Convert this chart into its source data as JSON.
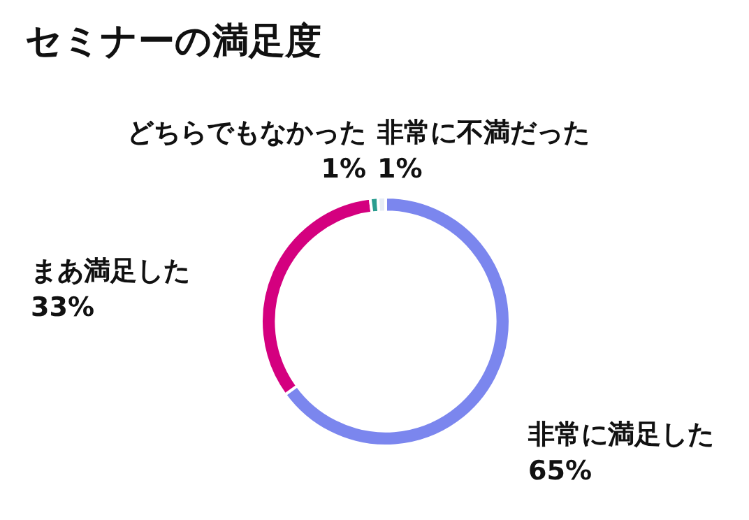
{
  "chart_data": {
    "type": "donut",
    "title": "セミナーの満足度",
    "categories": [
      "非常に満足した",
      "まあ満足した",
      "どちらでもなかった",
      "非常に不満だった"
    ],
    "values": [
      65,
      33,
      1,
      1
    ],
    "colors": [
      "#7b86ee",
      "#d4007f",
      "#2a9d8f",
      "#e6ecf5"
    ],
    "value_labels": [
      "65%",
      "33%",
      "1%",
      "1%"
    ],
    "legend": false
  }
}
